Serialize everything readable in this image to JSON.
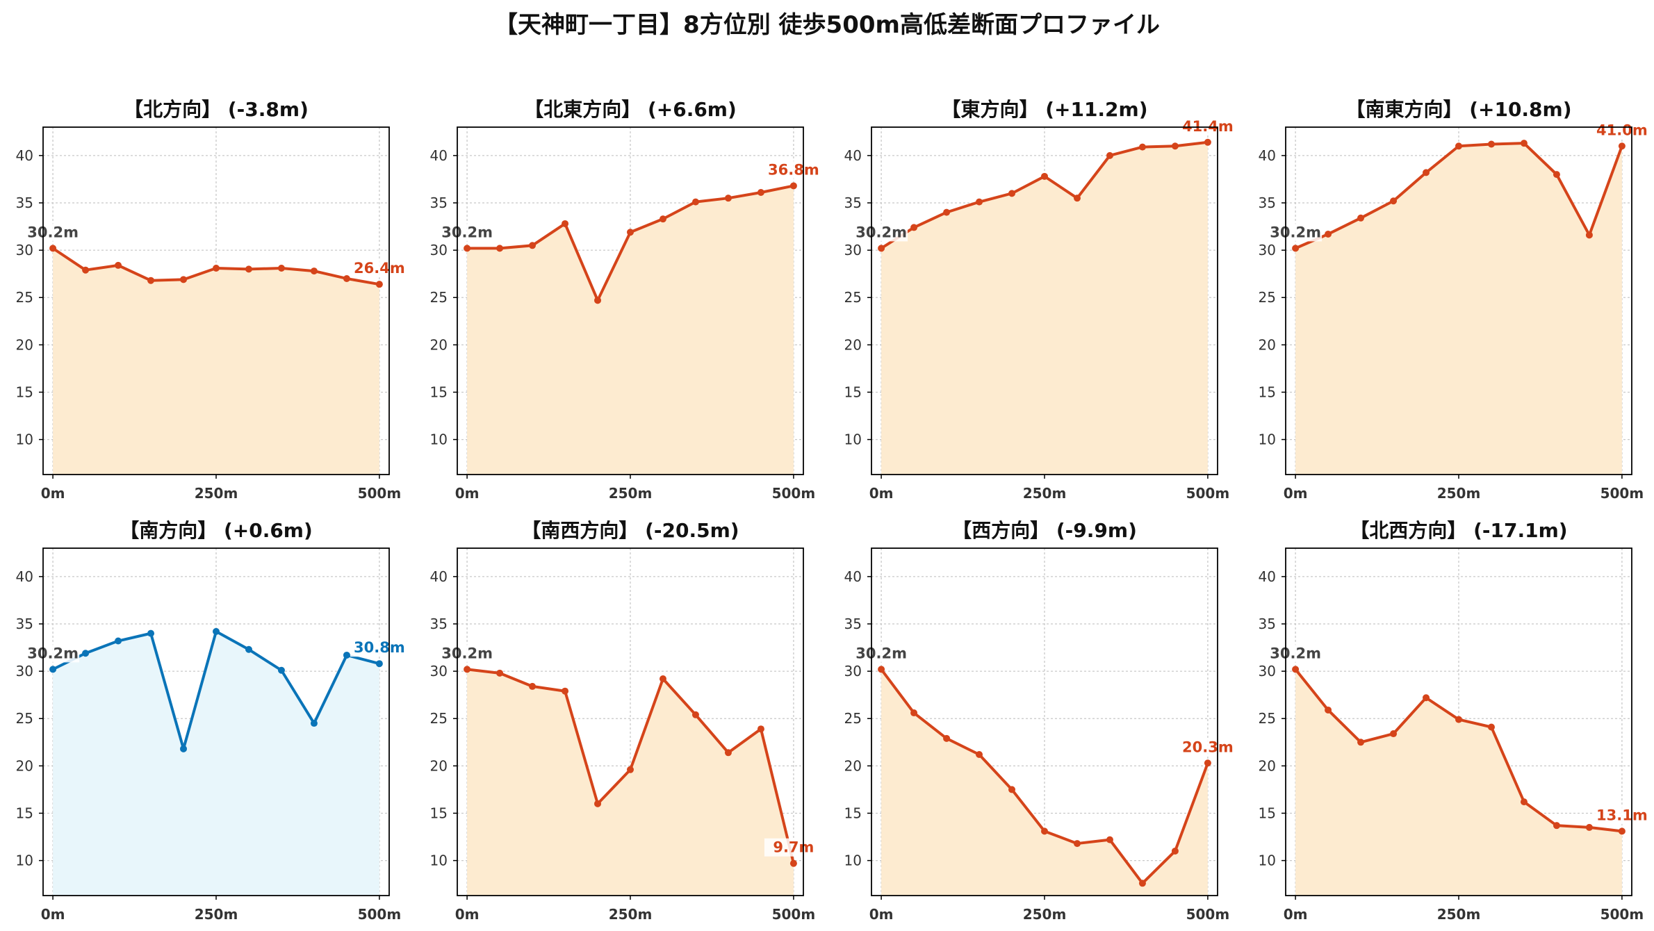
{
  "title": "【天神町一丁目】8方位別 徒歩500m高低差断面プロファイル",
  "colors": {
    "down_line": "#d5441a",
    "down_fill": "#fdebd0",
    "up_line": "#0a74b8",
    "up_fill": "#e8f6fb",
    "start_label": "#444444",
    "axes": "#000000"
  },
  "chart_data": [
    {
      "type": "line",
      "title": "【北方向】 (-3.8m)",
      "highlight": false,
      "x": [
        0,
        50,
        100,
        150,
        200,
        250,
        300,
        350,
        400,
        450,
        500
      ],
      "values": [
        30.2,
        27.9,
        28.4,
        26.8,
        26.9,
        28.1,
        28.0,
        28.1,
        27.8,
        27.0,
        26.4
      ],
      "start_label": "30.2m",
      "end_label": "26.4m",
      "xticks": [
        "0m",
        "250m",
        "500m"
      ],
      "yticks": [
        "10",
        "15",
        "20",
        "25",
        "30",
        "35",
        "40"
      ],
      "xlim": [
        -15,
        515
      ],
      "ylim": [
        6.3,
        43.0
      ],
      "grid": true
    },
    {
      "type": "line",
      "title": "【北東方向】 (+6.6m)",
      "highlight": false,
      "x": [
        0,
        50,
        100,
        150,
        200,
        250,
        300,
        350,
        400,
        450,
        500
      ],
      "values": [
        30.2,
        30.2,
        30.5,
        32.8,
        24.7,
        31.9,
        33.3,
        35.1,
        35.5,
        36.1,
        36.8
      ],
      "start_label": "30.2m",
      "end_label": "36.8m",
      "xticks": [
        "0m",
        "250m",
        "500m"
      ],
      "yticks": [
        "10",
        "15",
        "20",
        "25",
        "30",
        "35",
        "40"
      ],
      "xlim": [
        -15,
        515
      ],
      "ylim": [
        6.3,
        43.0
      ],
      "grid": true
    },
    {
      "type": "line",
      "title": "【東方向】 (+11.2m)",
      "highlight": false,
      "x": [
        0,
        50,
        100,
        150,
        200,
        250,
        300,
        350,
        400,
        450,
        500
      ],
      "values": [
        30.2,
        32.4,
        34.0,
        35.1,
        36.0,
        37.8,
        35.5,
        40.0,
        40.9,
        41.0,
        41.4
      ],
      "start_label": "30.2m",
      "end_label": "41.4m",
      "xticks": [
        "0m",
        "250m",
        "500m"
      ],
      "yticks": [
        "10",
        "15",
        "20",
        "25",
        "30",
        "35",
        "40"
      ],
      "xlim": [
        -15,
        515
      ],
      "ylim": [
        6.3,
        43.0
      ],
      "grid": true
    },
    {
      "type": "line",
      "title": "【南東方向】 (+10.8m)",
      "highlight": false,
      "x": [
        0,
        50,
        100,
        150,
        200,
        250,
        300,
        350,
        400,
        450,
        500
      ],
      "values": [
        30.2,
        31.7,
        33.4,
        35.2,
        38.2,
        41.0,
        41.2,
        41.3,
        38.0,
        31.6,
        41.0
      ],
      "start_label": "30.2m",
      "end_label": "41.0m",
      "xticks": [
        "0m",
        "250m",
        "500m"
      ],
      "yticks": [
        "10",
        "15",
        "20",
        "25",
        "30",
        "35",
        "40"
      ],
      "xlim": [
        -15,
        515
      ],
      "ylim": [
        6.3,
        43.0
      ],
      "grid": true
    },
    {
      "type": "line",
      "title": "【南方向】 (+0.6m)",
      "highlight": true,
      "x": [
        0,
        50,
        100,
        150,
        200,
        250,
        300,
        350,
        400,
        450,
        500
      ],
      "values": [
        30.2,
        31.9,
        33.2,
        34.0,
        21.8,
        34.2,
        32.3,
        30.1,
        24.5,
        31.7,
        30.8
      ],
      "start_label": "30.2m",
      "end_label": "30.8m",
      "xticks": [
        "0m",
        "250m",
        "500m"
      ],
      "yticks": [
        "10",
        "15",
        "20",
        "25",
        "30",
        "35",
        "40"
      ],
      "xlim": [
        -15,
        515
      ],
      "ylim": [
        6.3,
        43.0
      ],
      "grid": true
    },
    {
      "type": "line",
      "title": "【南西方向】 (-20.5m)",
      "highlight": false,
      "x": [
        0,
        50,
        100,
        150,
        200,
        250,
        300,
        350,
        400,
        450,
        500
      ],
      "values": [
        30.2,
        29.8,
        28.4,
        27.9,
        16.0,
        19.6,
        29.2,
        25.4,
        21.4,
        23.9,
        9.7
      ],
      "start_label": "30.2m",
      "end_label": "9.7m",
      "xticks": [
        "0m",
        "250m",
        "500m"
      ],
      "yticks": [
        "10",
        "15",
        "20",
        "25",
        "30",
        "35",
        "40"
      ],
      "xlim": [
        -15,
        515
      ],
      "ylim": [
        6.3,
        43.0
      ],
      "grid": true
    },
    {
      "type": "line",
      "title": "【西方向】 (-9.9m)",
      "highlight": false,
      "x": [
        0,
        50,
        100,
        150,
        200,
        250,
        300,
        350,
        400,
        450,
        500
      ],
      "values": [
        30.2,
        25.6,
        22.9,
        21.2,
        17.5,
        13.1,
        11.8,
        12.2,
        7.6,
        11.0,
        20.3
      ],
      "start_label": "30.2m",
      "end_label": "20.3m",
      "xticks": [
        "0m",
        "250m",
        "500m"
      ],
      "yticks": [
        "10",
        "15",
        "20",
        "25",
        "30",
        "35",
        "40"
      ],
      "xlim": [
        -15,
        515
      ],
      "ylim": [
        6.3,
        43.0
      ],
      "grid": true
    },
    {
      "type": "line",
      "title": "【北西方向】 (-17.1m)",
      "highlight": false,
      "x": [
        0,
        50,
        100,
        150,
        200,
        250,
        300,
        350,
        400,
        450,
        500
      ],
      "values": [
        30.2,
        25.9,
        22.5,
        23.4,
        27.2,
        24.9,
        24.1,
        16.2,
        13.7,
        13.5,
        13.1
      ],
      "start_label": "30.2m",
      "end_label": "13.1m",
      "xticks": [
        "0m",
        "250m",
        "500m"
      ],
      "yticks": [
        "10",
        "15",
        "20",
        "25",
        "30",
        "35",
        "40"
      ],
      "xlim": [
        -15,
        515
      ],
      "ylim": [
        6.3,
        43.0
      ],
      "grid": true
    }
  ]
}
